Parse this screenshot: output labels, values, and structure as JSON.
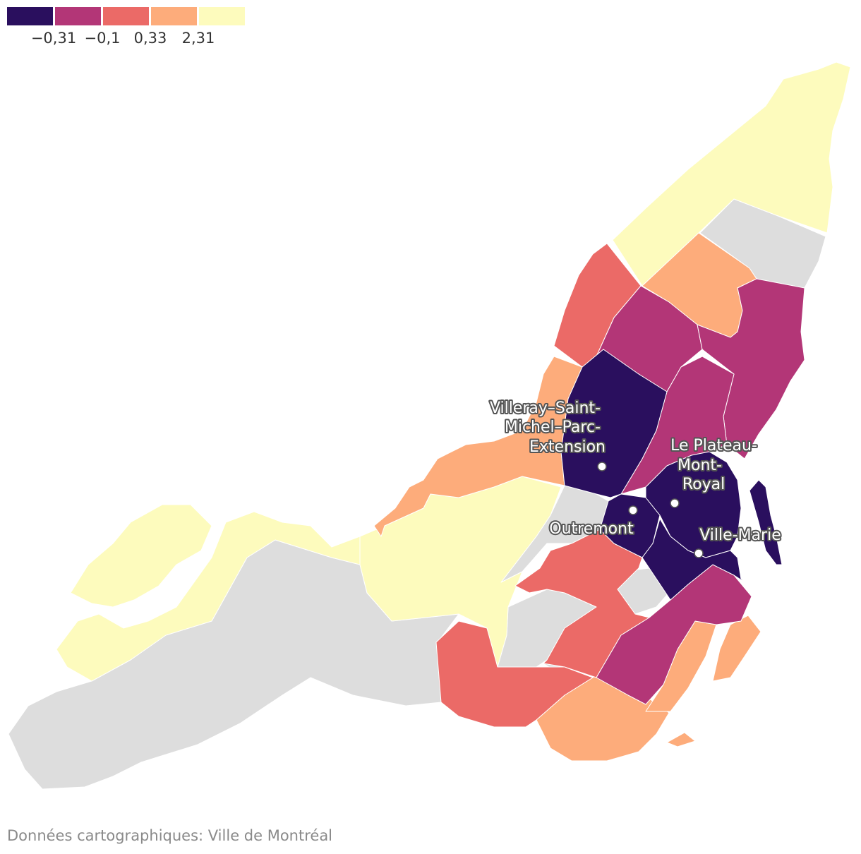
{
  "legend": {
    "colors": [
      "#2a0f5e",
      "#b33677",
      "#eb6a67",
      "#fdac7b",
      "#fdfbbd"
    ],
    "ticks": [
      "−0,31",
      "−0,1",
      "0,33",
      "2,31"
    ]
  },
  "colors": {
    "no_data": "#dddddd",
    "border": "#ffffff",
    "label_halo": "#555555"
  },
  "labels": {
    "villeray": [
      "Villeray–Saint-",
      "Michel–Parc-",
      "Extension"
    ],
    "plateau": [
      "Le Plateau-",
      "Mont-",
      "Royal"
    ],
    "outremont": "Outremont",
    "ville_marie": "Ville-Marie"
  },
  "source": "Données cartographiques: Ville de Montréal"
}
